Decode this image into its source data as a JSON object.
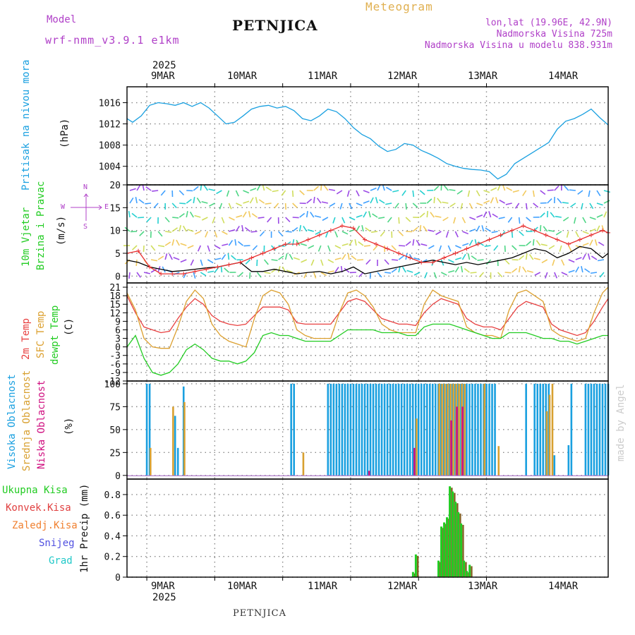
{
  "header": {
    "model_label": "Model",
    "model_name": "wrf-nmm_v3.9.1 e1km",
    "station_title": "PETNJICA",
    "product": "Meteogram",
    "coords": "lon,lat (19.96E, 42.9N)",
    "altitude": "Nadmorska Visina 725m",
    "model_altitude": "Nadmorska Visina u modelu 838.931m",
    "footer_station": "PETNJICA",
    "watermark": "made by Angel"
  },
  "time_axis": {
    "year_top": "2025",
    "year_bottom": "2025",
    "days": [
      "9MAR",
      "10MAR",
      "11MAR",
      "12MAR",
      "13MAR",
      "14MAR"
    ]
  },
  "panel_labels": {
    "pressure": [
      "Pritisak na nivou mora",
      "(hPa)"
    ],
    "wind": [
      "10m Vjetar",
      "Brzina i Pravac",
      "(m/s)"
    ],
    "compass": [
      "N",
      "E",
      "S",
      "W"
    ],
    "temp": [
      "2m Temp",
      "SFC Temp",
      "dewpt Temp",
      "(C)"
    ],
    "cloud": [
      "Visoka Oblacnost",
      "Srednja Oblacnost",
      "Niska Oblacnost",
      "(%)"
    ],
    "precip_legend": [
      "Ukupna Kisa",
      "Konvek.Kisa",
      "Zaledj.Kisa",
      "Snijeg",
      "Grad"
    ],
    "precip_unit": "1hr Precip (mm)"
  },
  "colors": {
    "pressure": "#1aa0e0",
    "temp2m": "#e84040",
    "sfc": "#dca030",
    "dewpt": "#22cc22",
    "cloud_high": "#1aa0e0",
    "cloud_mid": "#d8a030",
    "cloud_low": "#d01080",
    "precip_total": "#22cc22",
    "precip_conv": "#e04040",
    "precip_frz": "#f08030",
    "snow": "#5050e0",
    "hail": "#20c8c8",
    "grid": "#888888"
  },
  "chart_data": [
    {
      "id": "pressure",
      "type": "line",
      "unit": "hPa",
      "ylim": [
        1000.5,
        1019
      ],
      "yticks": [
        1004,
        1008,
        1012,
        1016
      ],
      "series": [
        {
          "name": "Pritisak na nivou mora",
          "x": [
            0,
            2,
            5,
            8,
            11,
            14,
            17,
            20,
            23,
            26,
            29,
            32,
            35,
            38,
            41,
            44,
            47,
            50,
            53,
            56,
            59,
            62,
            65,
            68,
            71,
            74,
            77,
            80,
            83,
            86,
            89,
            92,
            95,
            98,
            101,
            104,
            107,
            110,
            113,
            116,
            119,
            122,
            125,
            128,
            131,
            134,
            137,
            140,
            143,
            146,
            149,
            152,
            155,
            158,
            161,
            164,
            167,
            170
          ],
          "values": [
            1013,
            1012.3,
            1013.5,
            1015.5,
            1016,
            1015.8,
            1015.5,
            1016,
            1015.3,
            1016,
            1015,
            1013.5,
            1012,
            1012.3,
            1013.5,
            1014.8,
            1015.3,
            1015.5,
            1015,
            1015.3,
            1014.5,
            1013,
            1012.6,
            1013.5,
            1014.8,
            1014.3,
            1013,
            1011.3,
            1010,
            1009.2,
            1007.8,
            1006.8,
            1007.2,
            1008.3,
            1008,
            1007,
            1006.3,
            1005.5,
            1004.5,
            1004,
            1003.6,
            1003.4,
            1003.3,
            1003,
            1001.6,
            1002.5,
            1004.5,
            1005.5,
            1006.5,
            1007.5,
            1008.5,
            1011,
            1012.5,
            1013,
            1013.8,
            1014.8,
            1013.2,
            1011.8
          ]
        }
      ]
    },
    {
      "id": "wind",
      "type": "line",
      "unit": "m/s",
      "ylim": [
        -1.5,
        20
      ],
      "yticks": [
        0,
        5,
        10,
        15,
        20
      ],
      "series": [
        {
          "name": "speed_black",
          "x": [
            0,
            4,
            8,
            12,
            16,
            20,
            24,
            28,
            32,
            36,
            40,
            44,
            48,
            52,
            56,
            60,
            64,
            68,
            72,
            76,
            80,
            84,
            88,
            92,
            96,
            100,
            104,
            108,
            112,
            116,
            120,
            124,
            128,
            132,
            136,
            140,
            144,
            148,
            152,
            156,
            160,
            164,
            168,
            170
          ],
          "values": [
            3.5,
            3,
            2,
            1.5,
            1,
            1.2,
            1.5,
            1.8,
            2,
            2.5,
            3,
            1,
            1,
            1.5,
            1,
            0.5,
            0.8,
            1,
            0.5,
            1,
            2,
            0.5,
            1,
            1.5,
            2,
            2.5,
            3,
            3.5,
            3,
            2.5,
            3,
            2.5,
            3,
            3.5,
            4,
            5,
            6,
            5.5,
            4,
            5,
            6.5,
            6,
            4,
            5
          ]
        },
        {
          "name": "gust_red",
          "x": [
            0,
            4,
            8,
            12,
            16,
            20,
            24,
            28,
            32,
            36,
            40,
            44,
            48,
            52,
            56,
            60,
            64,
            68,
            72,
            76,
            80,
            84,
            88,
            92,
            96,
            100,
            104,
            108,
            112,
            116,
            120,
            124,
            128,
            132,
            136,
            140,
            144,
            148,
            152,
            156,
            160,
            164,
            168,
            170
          ],
          "values": [
            5,
            5.5,
            2,
            0.5,
            0.5,
            0.5,
            1,
            1.5,
            2,
            2.5,
            3,
            4,
            5,
            6,
            7,
            7,
            8,
            9,
            10,
            11,
            10.5,
            8,
            7,
            6,
            5,
            4,
            3,
            3,
            4,
            5,
            6,
            7,
            8,
            9,
            10,
            11,
            10,
            9,
            8,
            7,
            8,
            9,
            10,
            9.5
          ]
        }
      ]
    },
    {
      "id": "temperature",
      "type": "line",
      "unit": "C",
      "ylim": [
        -12,
        22.5
      ],
      "yticks": [
        -12,
        -9,
        -6,
        -3,
        0,
        3,
        6,
        9,
        12,
        15,
        18,
        21
      ],
      "series": [
        {
          "name": "2m Temp",
          "x": [
            0,
            3,
            6,
            9,
            12,
            15,
            18,
            21,
            24,
            27,
            30,
            33,
            36,
            39,
            42,
            45,
            48,
            51,
            54,
            57,
            60,
            63,
            66,
            69,
            72,
            75,
            78,
            81,
            84,
            87,
            90,
            93,
            96,
            99,
            102,
            105,
            108,
            111,
            114,
            117,
            120,
            123,
            126,
            129,
            132,
            135,
            138,
            141,
            144,
            147,
            150,
            153,
            156,
            159,
            162,
            165,
            168,
            170
          ],
          "values": [
            18,
            12,
            7,
            6,
            5,
            5.5,
            10,
            14,
            17,
            15,
            11,
            9,
            8,
            7.5,
            8,
            11,
            14,
            14,
            14,
            13,
            8.5,
            8,
            8,
            8,
            8,
            12,
            16,
            17,
            16,
            13,
            10,
            9,
            8,
            8,
            7.5,
            12,
            15,
            17,
            16,
            15,
            10,
            8,
            7,
            7,
            6,
            10,
            14,
            16,
            15,
            14,
            8,
            6,
            5,
            4,
            5,
            9,
            14,
            17
          ]
        },
        {
          "name": "SFC Temp",
          "x": [
            0,
            3,
            6,
            9,
            12,
            15,
            18,
            21,
            24,
            27,
            30,
            33,
            36,
            39,
            42,
            45,
            48,
            51,
            54,
            57,
            60,
            63,
            66,
            69,
            72,
            75,
            78,
            81,
            84,
            87,
            90,
            93,
            96,
            99,
            102,
            105,
            108,
            111,
            114,
            117,
            120,
            123,
            126,
            129,
            132,
            135,
            138,
            141,
            144,
            147,
            150,
            153,
            156,
            159,
            162,
            165,
            168,
            170
          ],
          "values": [
            19,
            13,
            3,
            0,
            -0.5,
            -0.5,
            7,
            16,
            20,
            17,
            8,
            4,
            2,
            1,
            0,
            10,
            18,
            20,
            19,
            15,
            6,
            4,
            3,
            3,
            3,
            12,
            19,
            20,
            18,
            14,
            8,
            6,
            5,
            5,
            5,
            15,
            20,
            18,
            17,
            16,
            7,
            5,
            4,
            4,
            3,
            13,
            19,
            20,
            18,
            16,
            6,
            4,
            3,
            2,
            3,
            12,
            19,
            21
          ]
        },
        {
          "name": "dewpt Temp",
          "x": [
            0,
            3,
            6,
            9,
            12,
            15,
            18,
            21,
            24,
            27,
            30,
            33,
            36,
            39,
            42,
            45,
            48,
            51,
            54,
            57,
            60,
            63,
            66,
            69,
            72,
            75,
            78,
            81,
            84,
            87,
            90,
            93,
            96,
            99,
            102,
            105,
            108,
            111,
            114,
            117,
            120,
            123,
            126,
            129,
            132,
            135,
            138,
            141,
            144,
            147,
            150,
            153,
            156,
            159,
            162,
            165,
            168,
            170
          ],
          "values": [
            0,
            4,
            -4,
            -9,
            -10,
            -9,
            -6,
            -1,
            1,
            -1,
            -4,
            -5,
            -5,
            -6,
            -5,
            -2,
            4,
            5,
            4,
            4,
            3,
            2,
            2,
            2,
            2,
            4,
            6,
            6,
            6,
            6,
            5,
            5,
            5,
            4,
            4,
            7,
            8,
            8,
            8,
            7,
            6,
            5,
            4,
            3,
            3,
            5,
            5,
            5,
            4,
            3,
            3,
            2,
            2,
            1,
            2,
            3,
            4,
            4
          ]
        }
      ]
    },
    {
      "id": "cloud_cover",
      "type": "bar",
      "unit": "%",
      "ylim": [
        -4,
        103
      ],
      "yticks": [
        0,
        25,
        50,
        75,
        100
      ],
      "series": [
        {
          "name": "Visoka Oblacnost",
          "x": [
            7,
            8,
            17,
            18,
            20,
            58,
            59,
            71,
            72,
            73,
            74,
            75,
            76,
            77,
            78,
            79,
            80,
            81,
            82,
            83,
            84,
            85,
            86,
            87,
            88,
            89,
            90,
            91,
            92,
            93,
            94,
            95,
            96,
            97,
            98,
            99,
            100,
            101,
            102,
            103,
            104,
            105,
            106,
            107,
            108,
            109,
            110,
            111,
            112,
            113,
            114,
            115,
            116,
            117,
            118,
            119,
            120,
            121,
            122,
            123,
            124,
            125,
            126,
            127,
            128,
            129,
            130,
            141,
            144,
            145,
            146,
            147,
            148,
            149,
            151,
            156,
            157,
            162,
            163,
            164,
            165,
            166,
            167,
            168,
            169,
            170
          ],
          "values": [
            100,
            100,
            65,
            30,
            97,
            100,
            100,
            100,
            100,
            100,
            100,
            100,
            100,
            100,
            100,
            100,
            100,
            100,
            100,
            100,
            100,
            100,
            100,
            100,
            100,
            100,
            100,
            100,
            100,
            100,
            100,
            100,
            100,
            100,
            100,
            100,
            100,
            100,
            100,
            100,
            100,
            100,
            100,
            100,
            100,
            100,
            100,
            100,
            100,
            100,
            100,
            100,
            100,
            100,
            100,
            100,
            100,
            100,
            100,
            100,
            100,
            100,
            100,
            100,
            100,
            100,
            100,
            100,
            100,
            100,
            100,
            100,
            100,
            100,
            22,
            33,
            100,
            100,
            100,
            100,
            100,
            100,
            100,
            100,
            100,
            100
          ]
        },
        {
          "name": "Srednja Oblacnost",
          "x": [
            8,
            16,
            20,
            62,
            102,
            110,
            111,
            112,
            113,
            114,
            115,
            116,
            117,
            118,
            119,
            126,
            131,
            148,
            149,
            150
          ],
          "values": [
            30,
            75,
            80,
            25,
            62,
            100,
            100,
            100,
            100,
            100,
            100,
            100,
            100,
            100,
            100,
            100,
            32,
            70,
            88,
            100
          ]
        },
        {
          "name": "Niska Oblacnost",
          "x": [
            85,
            101,
            114,
            116,
            118
          ],
          "values": [
            5,
            30,
            60,
            75,
            75
          ]
        }
      ]
    },
    {
      "id": "precipitation",
      "type": "bar",
      "unit": "mm",
      "ylim": [
        0,
        0.95
      ],
      "yticks": [
        0,
        0.2,
        0.4,
        0.6,
        0.8
      ],
      "series": [
        {
          "name": "Ukupna Kisa",
          "x": [
            101,
            102,
            110,
            111,
            112,
            113,
            114,
            115,
            116,
            117,
            118,
            119,
            120,
            121
          ],
          "values": [
            0.05,
            0.22,
            0.16,
            0.49,
            0.53,
            0.58,
            0.88,
            0.83,
            0.73,
            0.63,
            0.52,
            0.16,
            0.06,
            0.12
          ]
        },
        {
          "name": "Konvek.Kisa",
          "x": [],
          "values": []
        },
        {
          "name": "Zaledj.Kisa",
          "x": [],
          "values": []
        },
        {
          "name": "Snijeg",
          "x": [],
          "values": []
        },
        {
          "name": "Grad",
          "x": [],
          "values": []
        }
      ]
    }
  ]
}
